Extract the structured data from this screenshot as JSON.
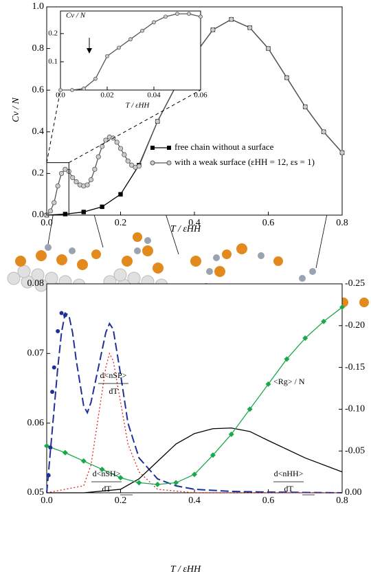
{
  "chart_data": [
    {
      "type": "line",
      "xlabel": "T / εHH",
      "ylabel": "Cv / N",
      "xlim": [
        0,
        0.8
      ],
      "ylim": [
        0,
        1.0
      ],
      "xticks": [
        {
          "value": 0,
          "label": "0.0"
        },
        0.2,
        0.4,
        0.6,
        0.8
      ],
      "yticks": [
        {
          "value": 0,
          "label": "0.0"
        },
        0.2,
        0.4,
        0.6,
        0.8,
        {
          "value": 1,
          "label": "1.0"
        }
      ],
      "series": [
        {
          "name": "free chain without a surface",
          "color": "#000000",
          "marker": "square",
          "x": [
            0,
            0.05,
            0.1,
            0.15,
            0.2,
            0.25,
            0.3,
            0.35,
            0.4,
            0.45,
            0.5,
            0.55,
            0.6,
            0.65,
            0.7,
            0.75,
            0.8
          ],
          "values": [
            0,
            0.005,
            0.015,
            0.04,
            0.1,
            0.24,
            0.45,
            0.62,
            0.77,
            0.89,
            0.94,
            0.9,
            0.8,
            0.66,
            0.52,
            0.4,
            0.3
          ]
        },
        {
          "name": "with a weak surface (εHH = 12, εs = 1)",
          "color": "#555555",
          "marker": "circle",
          "x": [
            0,
            0.01,
            0.02,
            0.03,
            0.04,
            0.05,
            0.06,
            0.07,
            0.08,
            0.09,
            0.1,
            0.11,
            0.12,
            0.13,
            0.14,
            0.15,
            0.16,
            0.17,
            0.18,
            0.19,
            0.2,
            0.21,
            0.22,
            0.23,
            0.24,
            0.25,
            0.3,
            0.35,
            0.4,
            0.45,
            0.5,
            0.55,
            0.6,
            0.65,
            0.7,
            0.75,
            0.8
          ],
          "values": [
            0,
            0.02,
            0.06,
            0.14,
            0.2,
            0.22,
            0.21,
            0.18,
            0.16,
            0.145,
            0.14,
            0.145,
            0.17,
            0.22,
            0.28,
            0.33,
            0.36,
            0.375,
            0.37,
            0.35,
            0.32,
            0.29,
            0.26,
            0.24,
            0.23,
            0.235,
            0.45,
            0.62,
            0.77,
            0.89,
            0.94,
            0.9,
            0.8,
            0.66,
            0.52,
            0.4,
            0.3
          ]
        }
      ]
    },
    {
      "type": "line",
      "xlabel": "T / εHH",
      "ylabel": "Cv / N",
      "xlim": [
        0,
        0.06
      ],
      "ylim": [
        0,
        0.28
      ],
      "xticks": [
        {
          "value": 0,
          "label": "0.0"
        },
        0.02,
        0.04,
        0.06
      ],
      "yticks": [
        0.1,
        0.2
      ],
      "series": [
        {
          "color": "#555555",
          "marker": "circle",
          "x": [
            0,
            0.005,
            0.01,
            0.015,
            0.02,
            0.025,
            0.03,
            0.035,
            0.04,
            0.045,
            0.05,
            0.055,
            0.06
          ],
          "values": [
            0,
            0,
            0.005,
            0.04,
            0.12,
            0.15,
            0.18,
            0.21,
            0.24,
            0.26,
            0.27,
            0.27,
            0.26
          ]
        }
      ]
    },
    {
      "type": "line",
      "xlabel": "T / εHH",
      "xlim": [
        0,
        0.8
      ],
      "ylim": [
        0.05,
        0.08
      ],
      "y2lim": [
        0,
        -0.25
      ],
      "xticks": [
        {
          "value": 0,
          "label": "0.0"
        },
        0.2,
        0.4,
        0.6,
        0.8
      ],
      "yticks": [
        0.05,
        0.06,
        0.07,
        0.08
      ],
      "y2ticks": [
        {
          "value": 0,
          "label": "0.00"
        },
        -0.05,
        {
          "value": -0.1,
          "label": "-0.10"
        },
        -0.15,
        {
          "value": -0.2,
          "label": "-0.20"
        },
        -0.25
      ],
      "annotations": [
        "d<nSP>",
        "dT",
        "d<nSH>",
        "dT",
        "d<nHH>",
        "dT",
        "<Rg> / N"
      ],
      "series": [
        {
          "color": "#1f2f9a",
          "dash": "dashed",
          "x": [
            0,
            0.02,
            0.03,
            0.04,
            0.05,
            0.06,
            0.07,
            0.08,
            0.1,
            0.11,
            0.12,
            0.14,
            0.16,
            0.17,
            0.18,
            0.2,
            0.22,
            0.25,
            0.3,
            0.35,
            0.4,
            0.5,
            0.6,
            0.8
          ],
          "values": [
            0.05,
            0.062,
            0.068,
            0.073,
            0.0758,
            0.0755,
            0.073,
            0.069,
            0.0625,
            0.0615,
            0.063,
            0.068,
            0.073,
            0.0743,
            0.0735,
            0.067,
            0.06,
            0.055,
            0.052,
            0.051,
            0.0505,
            0.0502,
            0.0501,
            0.05
          ]
        },
        {
          "color": "#e02020",
          "dash": "dotted",
          "x": [
            0,
            0.1,
            0.12,
            0.14,
            0.16,
            0.17,
            0.18,
            0.2,
            0.22,
            0.25,
            0.3,
            0.4,
            0.8
          ],
          "values": [
            0.05,
            0.051,
            0.054,
            0.061,
            0.068,
            0.07,
            0.069,
            0.063,
            0.057,
            0.053,
            0.0505,
            0.05,
            0.05
          ]
        },
        {
          "color": "#000000",
          "dash": "solid",
          "x": [
            0,
            0.1,
            0.2,
            0.25,
            0.3,
            0.35,
            0.4,
            0.45,
            0.5,
            0.55,
            0.6,
            0.7,
            0.8
          ],
          "values": [
            0.05,
            0.05,
            0.0505,
            0.052,
            0.0545,
            0.057,
            0.0585,
            0.0592,
            0.0593,
            0.0588,
            0.0575,
            0.055,
            0.053
          ]
        },
        {
          "color": "#1aa84a",
          "marker": "diamond",
          "dash": "solid",
          "axis": "y2",
          "x": [
            0,
            0.05,
            0.1,
            0.15,
            0.2,
            0.25,
            0.3,
            0.35,
            0.4,
            0.45,
            0.5,
            0.55,
            0.6,
            0.65,
            0.7,
            0.75,
            0.8
          ],
          "values": [
            -0.056,
            -0.048,
            -0.038,
            -0.028,
            -0.018,
            -0.012,
            -0.01,
            -0.012,
            -0.022,
            -0.045,
            -0.07,
            -0.1,
            -0.13,
            -0.16,
            -0.185,
            -0.205,
            -0.222
          ]
        },
        {
          "color": "#1f2f9a",
          "marker": "dot",
          "x": [
            0.005,
            0.01,
            0.015,
            0.02,
            0.03,
            0.04,
            0.05
          ],
          "values": [
            0.0525,
            0.0565,
            0.0645,
            0.068,
            0.0732,
            0.0758,
            0.0755
          ]
        }
      ]
    }
  ]
}
